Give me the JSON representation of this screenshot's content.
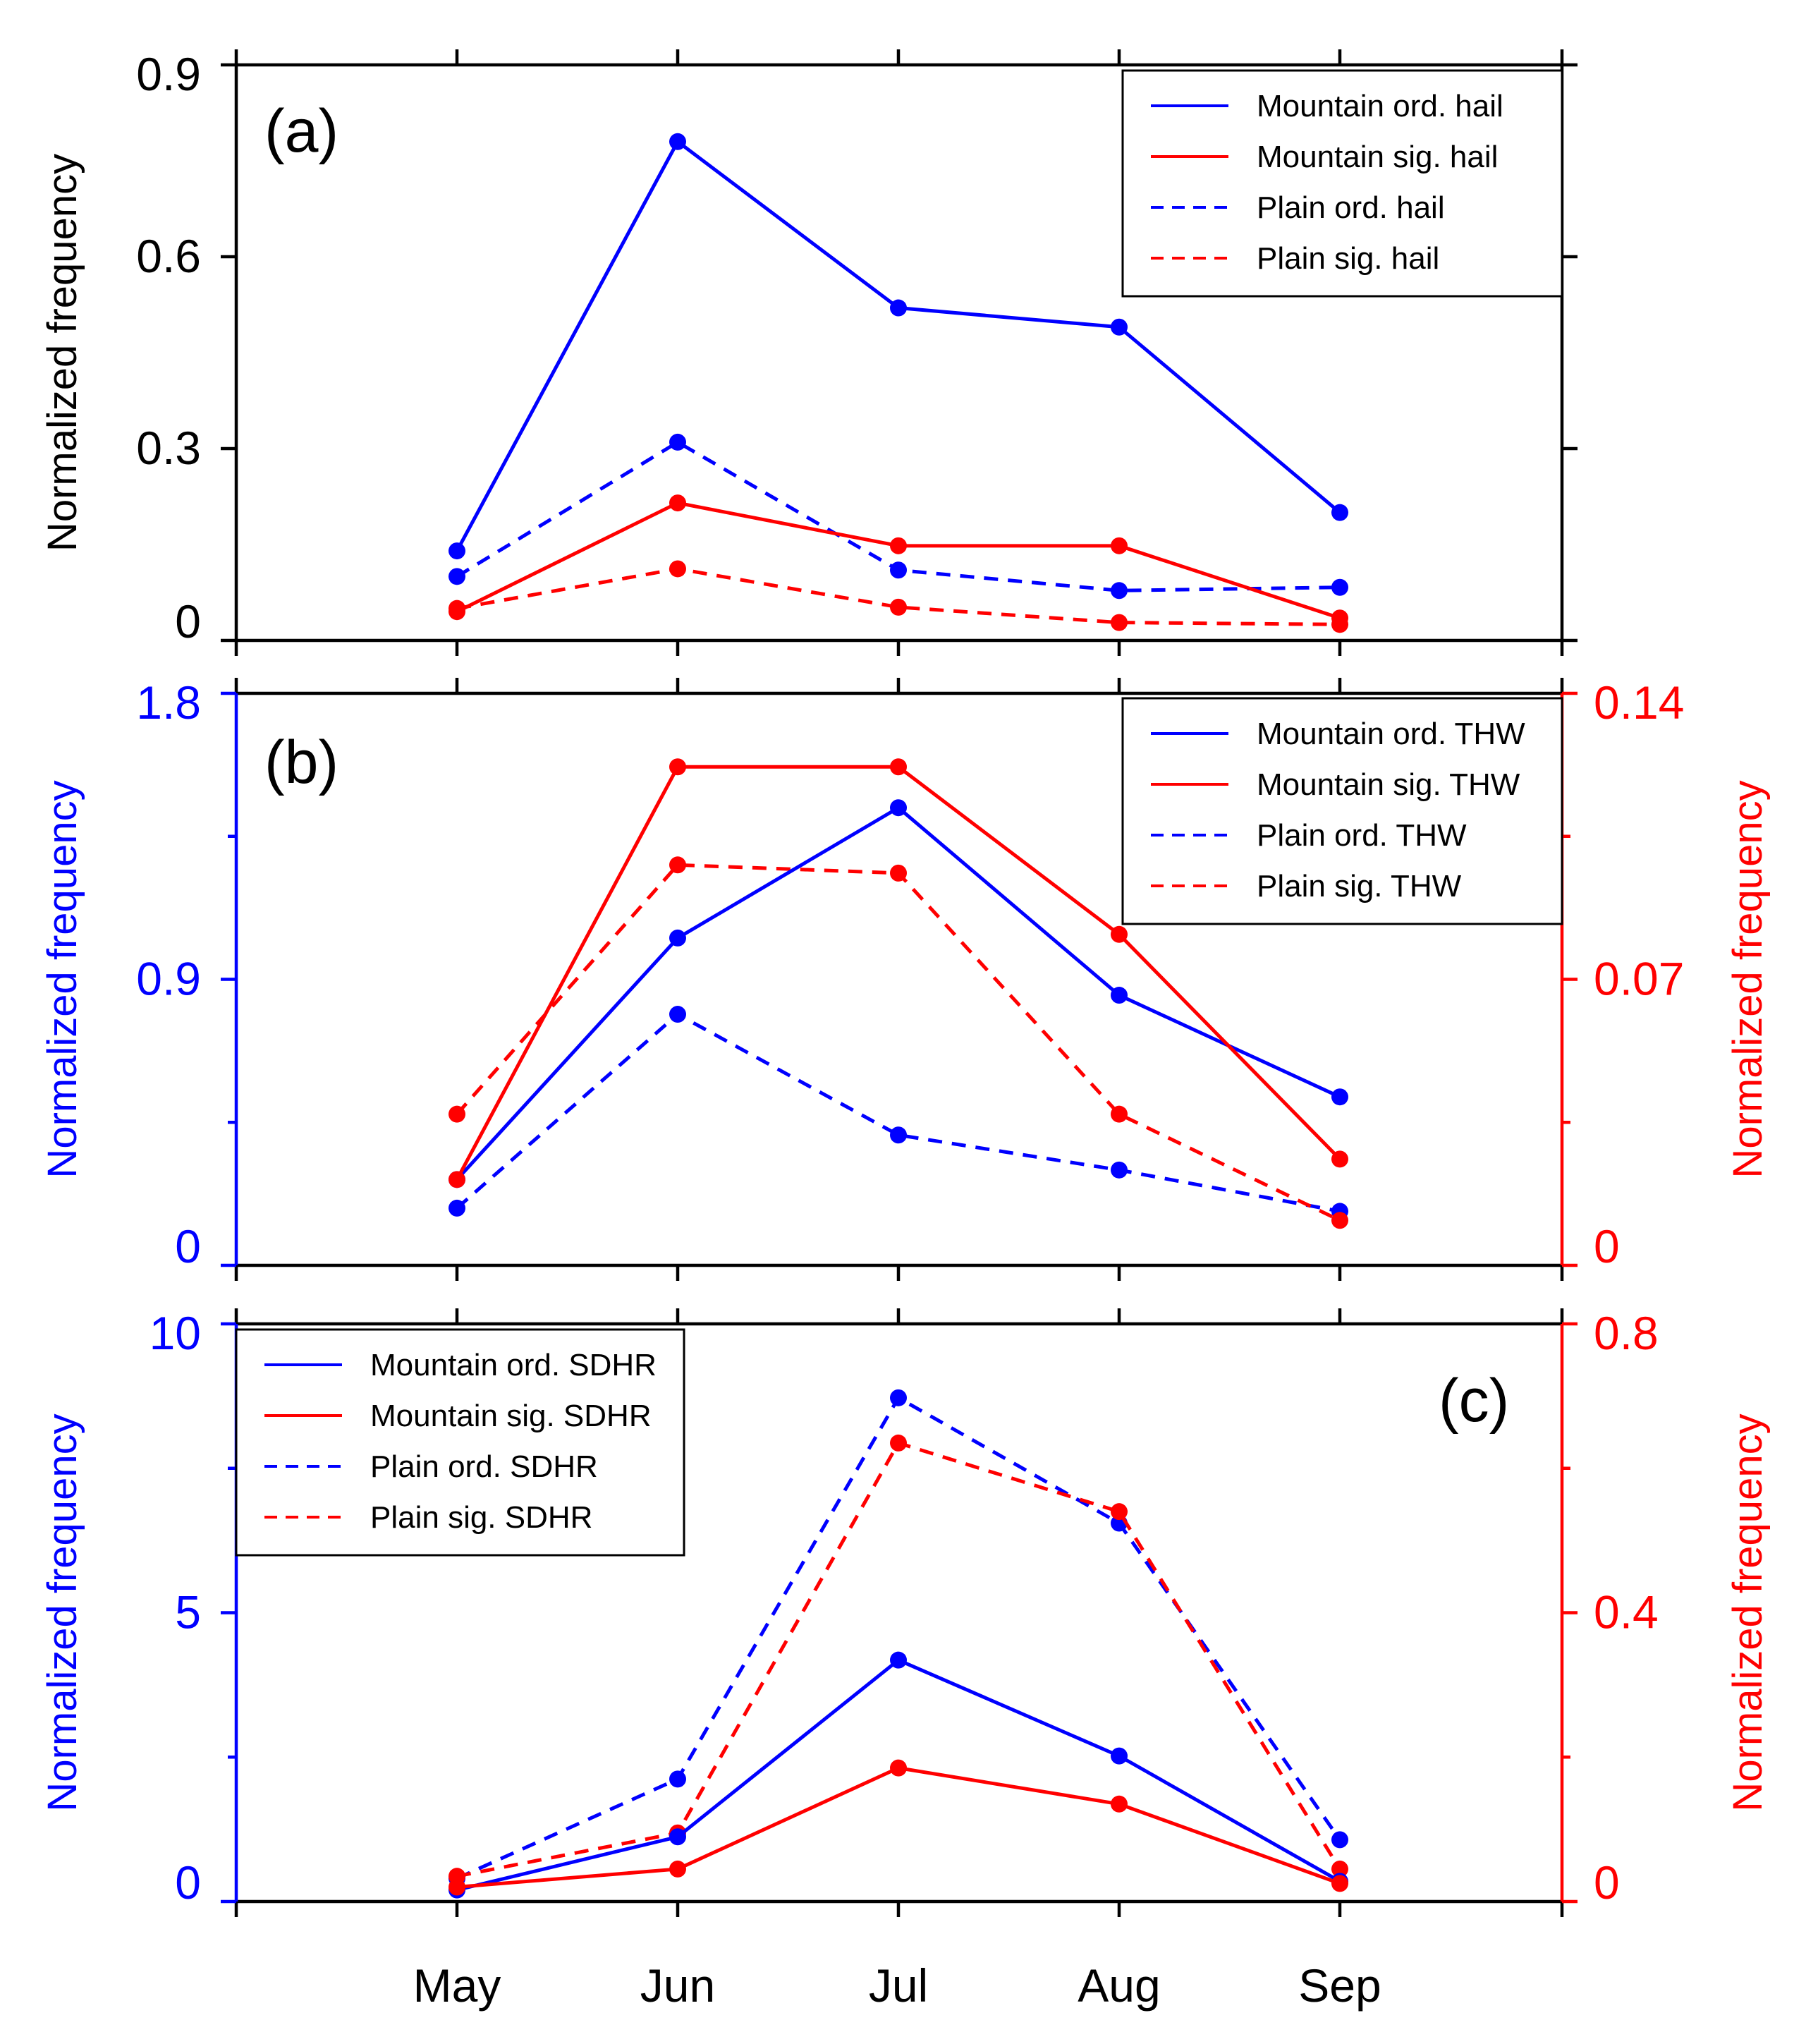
{
  "months": [
    "May",
    "Jun",
    "Jul",
    "Aug",
    "Sep"
  ],
  "colors": {
    "blue": "#0000ff",
    "red": "#ff0000",
    "black": "#000000"
  },
  "chart_data": [
    {
      "type": "line",
      "panel_label": "(a)",
      "categories": [
        "May",
        "Jun",
        "Jul",
        "Aug",
        "Sep"
      ],
      "ylabel_left": "Normalized frequency",
      "ylim_left": [
        0,
        0.9
      ],
      "yticks_left": [
        "0",
        "0.3",
        "0.6",
        "0.9"
      ],
      "legend_position": "top-right",
      "series": [
        {
          "name": "Mountain ord. hail",
          "axis": "left",
          "color": "#0000ff",
          "dashed": false,
          "values": [
            0.14,
            0.78,
            0.52,
            0.49,
            0.2
          ]
        },
        {
          "name": "Mountain sig. hail",
          "axis": "left",
          "color": "#ff0000",
          "dashed": false,
          "values": [
            0.045,
            0.215,
            0.148,
            0.148,
            0.035
          ]
        },
        {
          "name": "Plain ord. hail",
          "axis": "left",
          "color": "#0000ff",
          "dashed": true,
          "values": [
            0.1,
            0.31,
            0.11,
            0.078,
            0.083
          ]
        },
        {
          "name": "Plain sig. hail",
          "axis": "left",
          "color": "#ff0000",
          "dashed": true,
          "values": [
            0.05,
            0.112,
            0.052,
            0.028,
            0.025
          ]
        }
      ]
    },
    {
      "type": "line",
      "panel_label": "(b)",
      "categories": [
        "May",
        "Jun",
        "Jul",
        "Aug",
        "Sep"
      ],
      "ylabel_left": "Normalized frequency",
      "ylabel_right": "Normalized frequency",
      "ylim_left": [
        0,
        1.8
      ],
      "yticks_left": [
        "0",
        "0.9",
        "1.8"
      ],
      "ylim_right": [
        0,
        0.14
      ],
      "yticks_right": [
        "0",
        "0.07",
        "0.14"
      ],
      "legend_position": "top-right",
      "series": [
        {
          "name": "Mountain ord. THW",
          "axis": "left",
          "color": "#0000ff",
          "dashed": false,
          "values": [
            0.27,
            1.03,
            1.44,
            0.85,
            0.53
          ]
        },
        {
          "name": "Mountain sig. THW",
          "axis": "right",
          "color": "#ff0000",
          "dashed": false,
          "values": [
            0.021,
            0.122,
            0.122,
            0.081,
            0.026
          ]
        },
        {
          "name": "Plain ord. THW",
          "axis": "left",
          "color": "#0000ff",
          "dashed": true,
          "values": [
            0.18,
            0.79,
            0.41,
            0.3,
            0.17
          ]
        },
        {
          "name": "Plain sig. THW",
          "axis": "right",
          "color": "#ff0000",
          "dashed": true,
          "values": [
            0.037,
            0.098,
            0.096,
            0.037,
            0.011
          ]
        }
      ]
    },
    {
      "type": "line",
      "panel_label": "(c)",
      "categories": [
        "May",
        "Jun",
        "Jul",
        "Aug",
        "Sep"
      ],
      "ylabel_left": "Normalized frequency",
      "ylabel_right": "Normalized frequency",
      "ylim_left": [
        0,
        10
      ],
      "yticks_left": [
        "0",
        "5",
        "10"
      ],
      "ylim_right": [
        0,
        0.8
      ],
      "yticks_right": [
        "0",
        "0.4",
        "0.8"
      ],
      "legend_position": "top-left",
      "series": [
        {
          "name": "Mountain ord. SDHR",
          "axis": "left",
          "color": "#0000ff",
          "dashed": false,
          "values": [
            0.2,
            1.12,
            4.18,
            2.52,
            0.35
          ]
        },
        {
          "name": "Mountain sig. SDHR",
          "axis": "right",
          "color": "#ff0000",
          "dashed": false,
          "values": [
            0.02,
            0.045,
            0.185,
            0.135,
            0.025
          ]
        },
        {
          "name": "Plain ord. SDHR",
          "axis": "left",
          "color": "#0000ff",
          "dashed": true,
          "values": [
            0.4,
            2.12,
            8.72,
            6.55,
            1.07
          ]
        },
        {
          "name": "Plain sig. SDHR",
          "axis": "right",
          "color": "#ff0000",
          "dashed": true,
          "values": [
            0.035,
            0.095,
            0.635,
            0.54,
            0.045
          ]
        }
      ]
    }
  ]
}
